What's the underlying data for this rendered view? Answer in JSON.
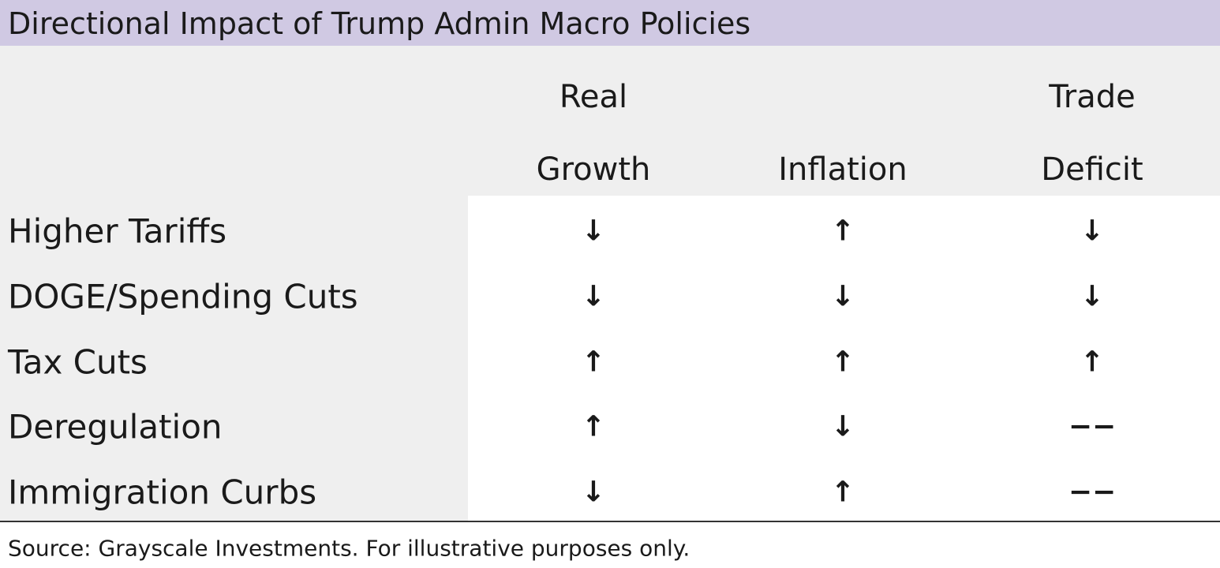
{
  "header": {
    "title": "Directional Impact of Trump Admin Macro Policies"
  },
  "table": {
    "columns": [
      {
        "lines": [
          "Real",
          "Growth"
        ]
      },
      {
        "lines": [
          "Inflation"
        ]
      },
      {
        "lines": [
          "Trade",
          "Deficit"
        ]
      }
    ],
    "rows": [
      [
        "Higher Tariffs",
        "↓",
        "↑",
        "↓"
      ],
      [
        "DOGE/Spending Cuts",
        "↓",
        "↓",
        "↓"
      ],
      [
        "Tax Cuts",
        "↑",
        "↑",
        "↑"
      ],
      [
        "Deregulation",
        "↑",
        "↓",
        "−−"
      ],
      [
        "Immigration Curbs",
        "↓",
        "↑",
        "−−"
      ]
    ]
  },
  "footer": {
    "source": "Source: Grayscale Investments. For illustrative purposes only."
  }
}
